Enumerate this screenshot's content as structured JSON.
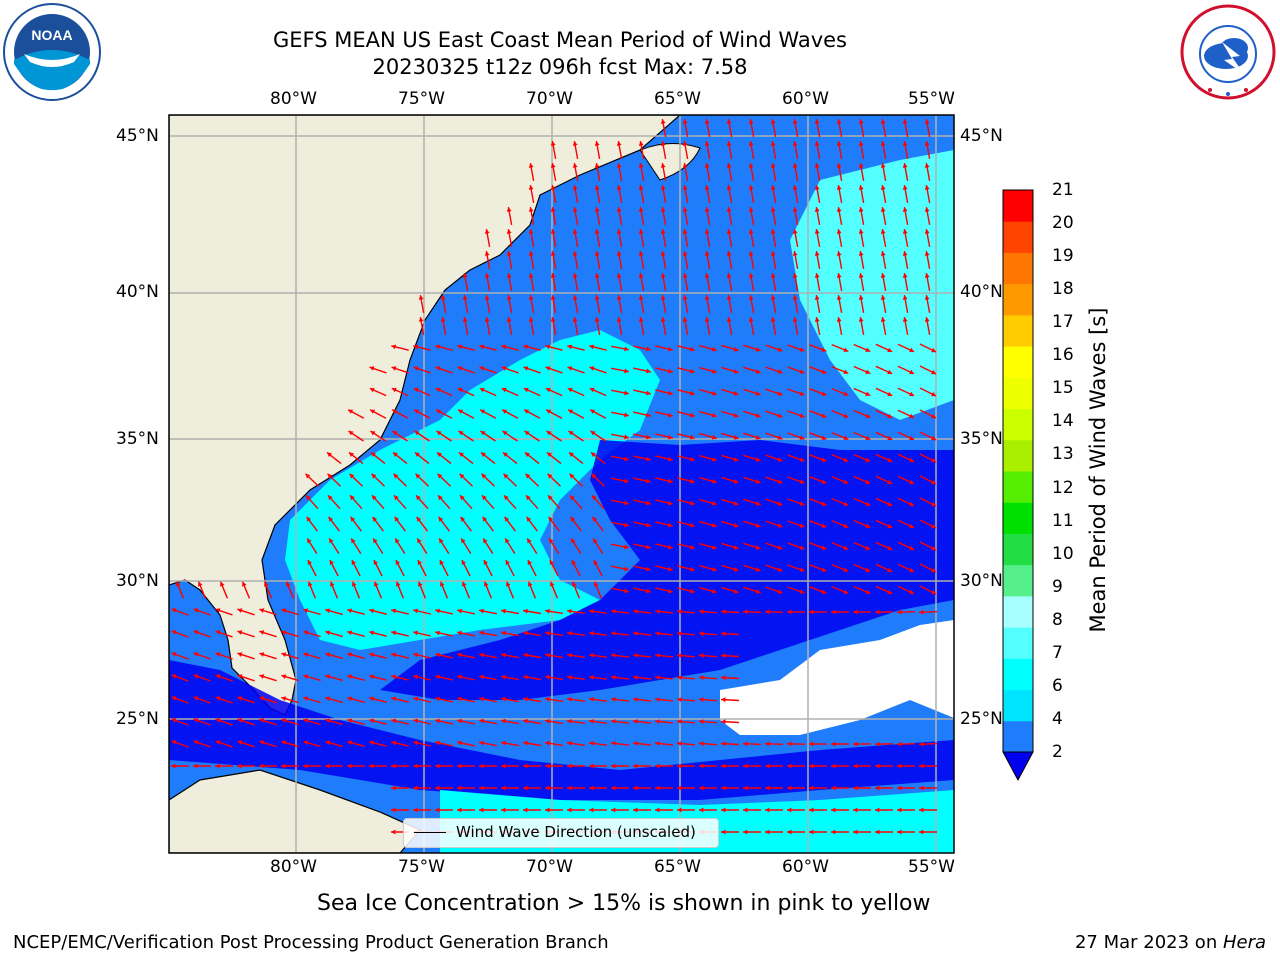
{
  "title": {
    "line1": "GEFS MEAN US East Coast Mean Period of Wind Waves",
    "line2": "20230325 t12z 096h fcst   Max: 7.58"
  },
  "map": {
    "lon_labels": [
      "80°W",
      "75°W",
      "70°W",
      "65°W",
      "60°W",
      "55°W"
    ],
    "lat_labels": [
      "45°N",
      "40°N",
      "35°N",
      "30°N",
      "25°N"
    ],
    "extent": {
      "lon": [
        -85,
        -54.2
      ],
      "lat": [
        20.3,
        46
      ]
    },
    "colors": {
      "land": "#efeedc",
      "water_2_4": "#1f7dfb",
      "water_4_6": "#00ffff",
      "water_6_8": "#54ffff",
      "water_lt2": "#0000ee",
      "arrow": "#ff0000"
    }
  },
  "legend": {
    "label": "Wind Wave Direction (unscaled)"
  },
  "colorbar": {
    "label": "Mean Period of Wind Waves [s]",
    "ticks": [
      "2",
      "4",
      "6",
      "7",
      "8",
      "9",
      "10",
      "11",
      "12",
      "13",
      "14",
      "15",
      "16",
      "17",
      "18",
      "19",
      "20",
      "21"
    ],
    "colors": [
      "#1f7dfb",
      "#00e5ff",
      "#00ffff",
      "#54ffff",
      "#a8ffff",
      "#55f08a",
      "#22dd44",
      "#00e000",
      "#55ee00",
      "#aaee00",
      "#ccff00",
      "#eeff00",
      "#ffff00",
      "#ffcc00",
      "#ff9900",
      "#ff7700",
      "#ff4400",
      "#ff0000"
    ]
  },
  "caption": "Sea Ice Concentration > 15% is shown in pink to yellow",
  "footer": {
    "left": "NCEP/EMC/Verification Post Processing Product Generation Branch",
    "right_date": "27 Mar 2023 on ",
    "right_host": "Hera"
  },
  "logos": {
    "left": "NOAA",
    "right": "NATIONAL WEATHER SERVICE"
  }
}
